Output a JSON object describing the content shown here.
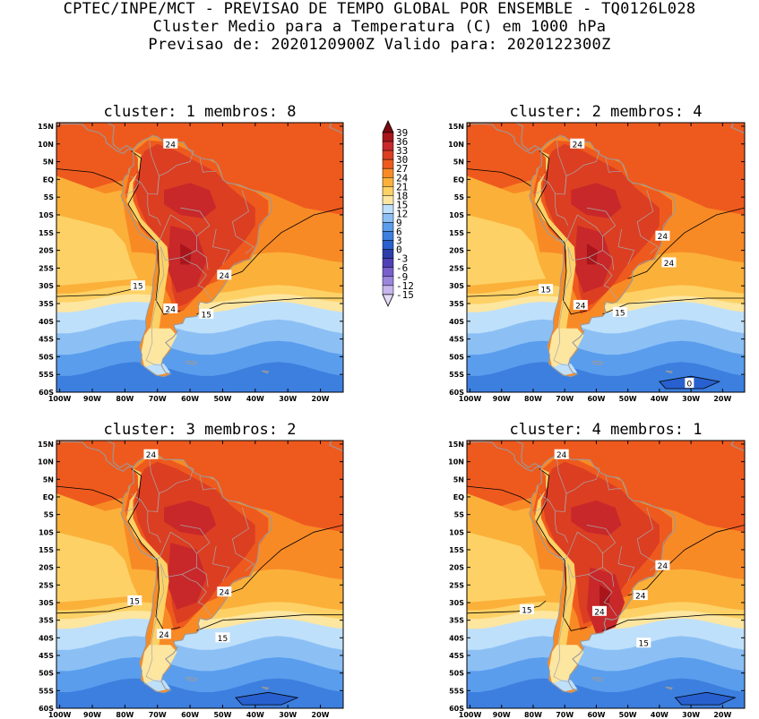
{
  "header": {
    "line1": "CPTEC/INPE/MCT - PREVISAO DE TEMPO GLOBAL POR ENSEMBLE - TQ0126L028",
    "line2": "Cluster Medio para a Temperatura (C) em 1000 hPa",
    "line3": "Previsao de: 2020120900Z   Valido para: 2020122300Z"
  },
  "axes": {
    "lat_ticks": [
      "15N",
      "10N",
      "5N",
      "EQ",
      "5S",
      "10S",
      "15S",
      "20S",
      "25S",
      "30S",
      "35S",
      "40S",
      "45S",
      "50S",
      "55S",
      "60S"
    ],
    "lon_ticks": [
      "100W",
      "90W",
      "80W",
      "70W",
      "60W",
      "50W",
      "40W",
      "30W",
      "20W"
    ]
  },
  "colorbar": {
    "levels": [
      "39",
      "36",
      "33",
      "30",
      "27",
      "24",
      "21",
      "18",
      "15",
      "12",
      "9",
      "6",
      "3",
      "0",
      "-3",
      "-6",
      "-9",
      "-12",
      "-15"
    ],
    "colors": [
      "#7a0a10",
      "#a8161c",
      "#c8282a",
      "#dc3e22",
      "#ee5a1e",
      "#f88a26",
      "#fbb03a",
      "#fdd165",
      "#fde6a0",
      "#bfe0fb",
      "#8cc0f5",
      "#5a9ded",
      "#3c7fdf",
      "#2860cf",
      "#2c3ea8",
      "#5040b6",
      "#7760cc",
      "#9c86dc",
      "#c6b6ec",
      "#e4dcf8"
    ]
  },
  "panels": [
    {
      "title": "cluster: 1   membros: 8",
      "labels": [
        {
          "t": "24",
          "lon": -66,
          "lat": 10
        },
        {
          "t": "15",
          "lon": -76,
          "lat": -30
        },
        {
          "t": "24",
          "lon": -66,
          "lat": -36.5
        },
        {
          "t": "15",
          "lon": -55,
          "lat": -38
        },
        {
          "t": "24",
          "lon": -49.5,
          "lat": -27
        }
      ]
    },
    {
      "title": "cluster: 2   membros: 4",
      "labels": [
        {
          "t": "24",
          "lon": -66,
          "lat": 10
        },
        {
          "t": "24",
          "lon": -39,
          "lat": -16
        },
        {
          "t": "24",
          "lon": -37,
          "lat": -23.5
        },
        {
          "t": "15",
          "lon": -76,
          "lat": -31
        },
        {
          "t": "24",
          "lon": -65,
          "lat": -35.5
        },
        {
          "t": "15",
          "lon": -52.5,
          "lat": -37.5
        },
        {
          "t": "0",
          "lon": -30.5,
          "lat": -57.5
        }
      ]
    },
    {
      "title": "cluster: 3   membros: 2",
      "labels": [
        {
          "t": "24",
          "lon": -72,
          "lat": 12
        },
        {
          "t": "24",
          "lon": -49.5,
          "lat": -27
        },
        {
          "t": "15",
          "lon": -77,
          "lat": -29.5
        },
        {
          "t": "24",
          "lon": -68,
          "lat": -39
        },
        {
          "t": "15",
          "lon": -50,
          "lat": -40
        }
      ]
    },
    {
      "title": "cluster: 4   membros: 1",
      "labels": [
        {
          "t": "24",
          "lon": -71,
          "lat": 12
        },
        {
          "t": "24",
          "lon": -39,
          "lat": -19.5
        },
        {
          "t": "24",
          "lon": -46,
          "lat": -28
        },
        {
          "t": "15",
          "lon": -82,
          "lat": -32
        },
        {
          "t": "24",
          "lon": -59,
          "lat": -32.5
        },
        {
          "t": "15",
          "lon": -45,
          "lat": -41.5
        }
      ]
    }
  ]
}
